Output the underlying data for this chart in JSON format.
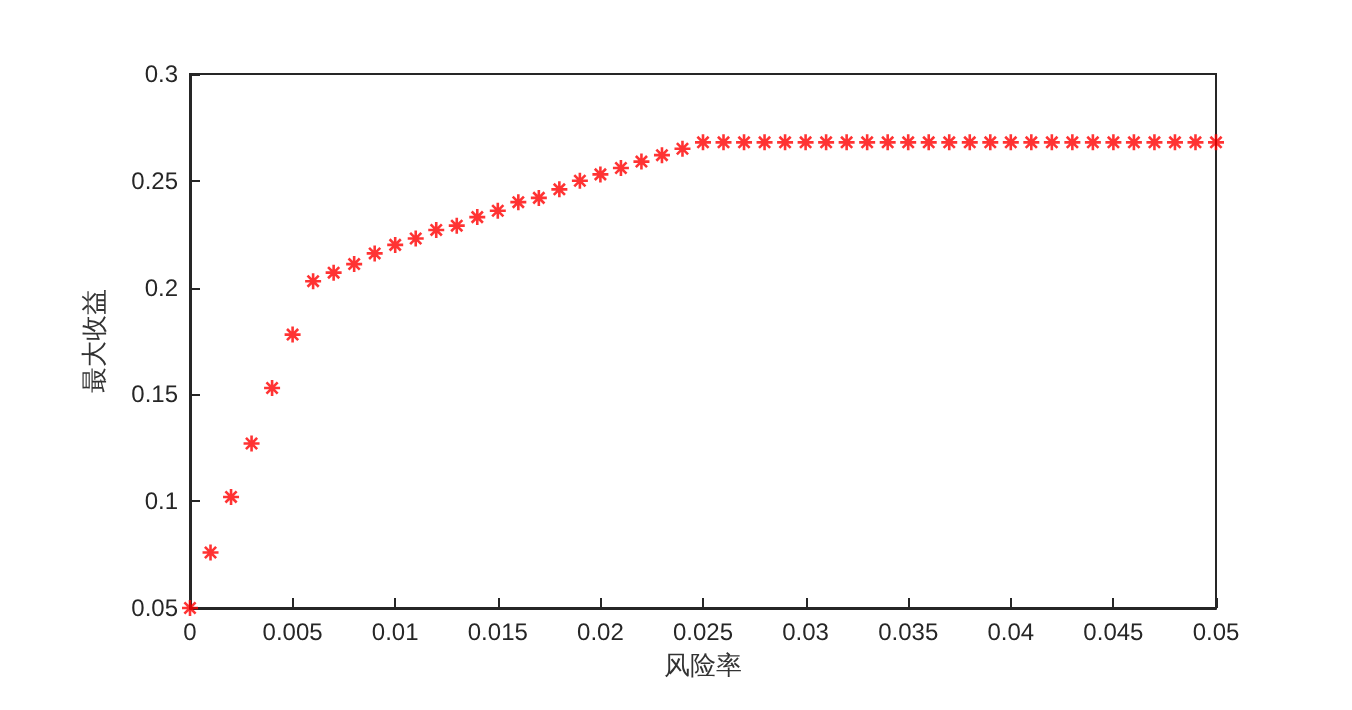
{
  "chart_data": {
    "type": "scatter",
    "xlabel": "风险率",
    "ylabel": "最大收益",
    "x": [
      0,
      0.001,
      0.002,
      0.003,
      0.004,
      0.005,
      0.006,
      0.007,
      0.008,
      0.009,
      0.01,
      0.011,
      0.012,
      0.013,
      0.014,
      0.015,
      0.016,
      0.017,
      0.018,
      0.019,
      0.02,
      0.021,
      0.022,
      0.023,
      0.024,
      0.025,
      0.026,
      0.027,
      0.028,
      0.029,
      0.03,
      0.031,
      0.032,
      0.033,
      0.034,
      0.035,
      0.036,
      0.037,
      0.038,
      0.039,
      0.04,
      0.041,
      0.042,
      0.043,
      0.044,
      0.045,
      0.046,
      0.047,
      0.048,
      0.049,
      0.05
    ],
    "values": [
      0.05,
      0.076,
      0.102,
      0.127,
      0.153,
      0.178,
      0.203,
      0.207,
      0.211,
      0.216,
      0.22,
      0.223,
      0.227,
      0.229,
      0.233,
      0.236,
      0.24,
      0.242,
      0.246,
      0.25,
      0.253,
      0.256,
      0.259,
      0.262,
      0.265,
      0.268,
      0.268,
      0.268,
      0.268,
      0.268,
      0.268,
      0.268,
      0.268,
      0.268,
      0.268,
      0.268,
      0.268,
      0.268,
      0.268,
      0.268,
      0.268,
      0.268,
      0.268,
      0.268,
      0.268,
      0.268,
      0.268,
      0.268,
      0.268,
      0.268,
      0.268
    ],
    "color": "#ff0000",
    "marker": "cross",
    "xlim": [
      0,
      0.05
    ],
    "xticks": [
      0,
      0.005,
      0.01,
      0.015,
      0.02,
      0.025,
      0.03,
      0.035,
      0.04,
      0.045,
      0.05
    ],
    "ylim": [
      0.05,
      0.3
    ],
    "yticks": [
      0.05,
      0.1,
      0.15,
      0.2,
      0.25,
      0.3
    ],
    "grid": false
  }
}
